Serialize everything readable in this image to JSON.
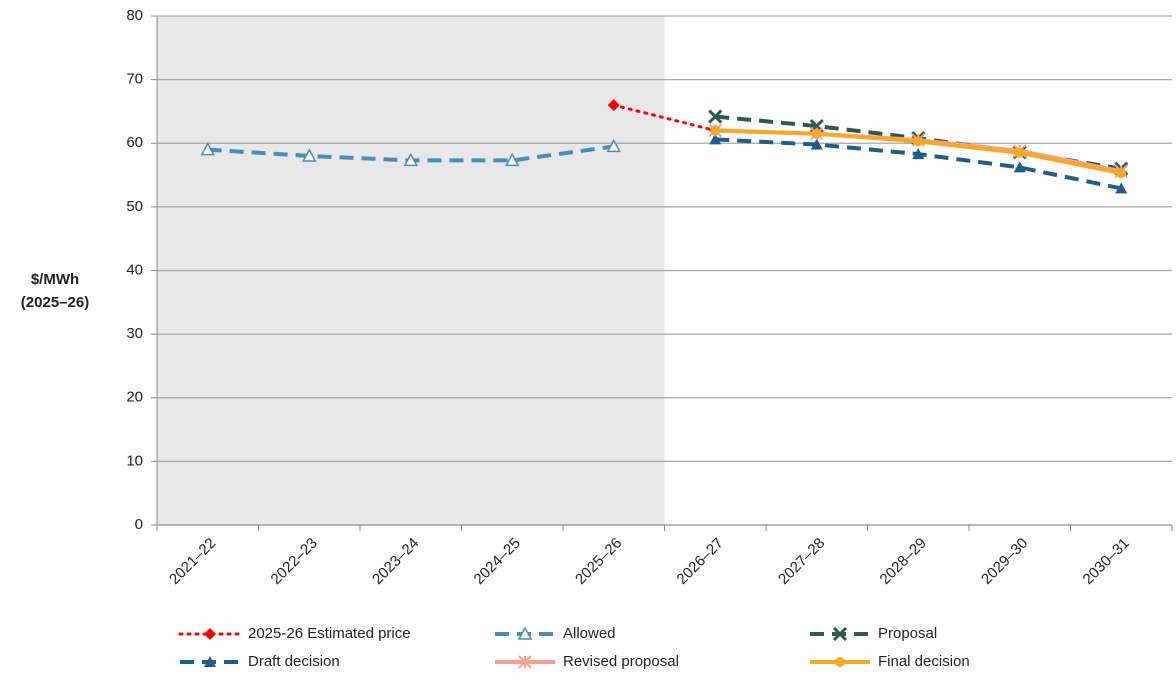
{
  "chart_data": {
    "type": "line",
    "y_label": [
      "$/MWh",
      "(2025–26)"
    ],
    "categories": [
      "2021–22",
      "2022–23",
      "2023–24",
      "2024–25",
      "2025–26",
      "2026–27",
      "2027–28",
      "2028–29",
      "2029–30",
      "2030–31"
    ],
    "series": [
      {
        "name": "2025-26 Estimated price",
        "color": "#ff0000",
        "dash": "dotted",
        "marker": "diamond",
        "values": [
          null,
          null,
          null,
          null,
          66,
          62,
          null,
          null,
          null,
          null
        ]
      },
      {
        "name": "Allowed",
        "color": "#4a8db5",
        "dash": "dashed",
        "marker": "open-triangle",
        "values": [
          59,
          58,
          57.3,
          57.3,
          59.5,
          null,
          null,
          null,
          null,
          null
        ]
      },
      {
        "name": "Proposal",
        "color": "#2e5a4e",
        "dash": "dashed",
        "marker": "x",
        "values": [
          null,
          null,
          null,
          null,
          null,
          64.2,
          62.7,
          60.8,
          58.6,
          56
        ]
      },
      {
        "name": "Draft decision",
        "color": "#1f5d8a",
        "dash": "dashed",
        "marker": "triangle",
        "values": [
          null,
          null,
          null,
          null,
          null,
          60.6,
          59.8,
          58.3,
          56.2,
          52.9
        ]
      },
      {
        "name": "Revised proposal",
        "color": "#f4a090",
        "dash": "solid",
        "marker": "asterisk",
        "values": [
          null,
          null,
          null,
          null,
          null,
          62,
          61.5,
          60.5,
          58.8,
          55.6
        ]
      },
      {
        "name": "Final decision",
        "color": "#f9a825",
        "dash": "solid",
        "marker": "circle",
        "values": [
          null,
          null,
          null,
          null,
          null,
          62,
          61.5,
          60.3,
          58.5,
          55.3
        ]
      }
    ],
    "ylim": [
      0,
      80
    ],
    "yticks": [
      0,
      10,
      20,
      30,
      40,
      50,
      60,
      70,
      80
    ],
    "grid": true
  }
}
